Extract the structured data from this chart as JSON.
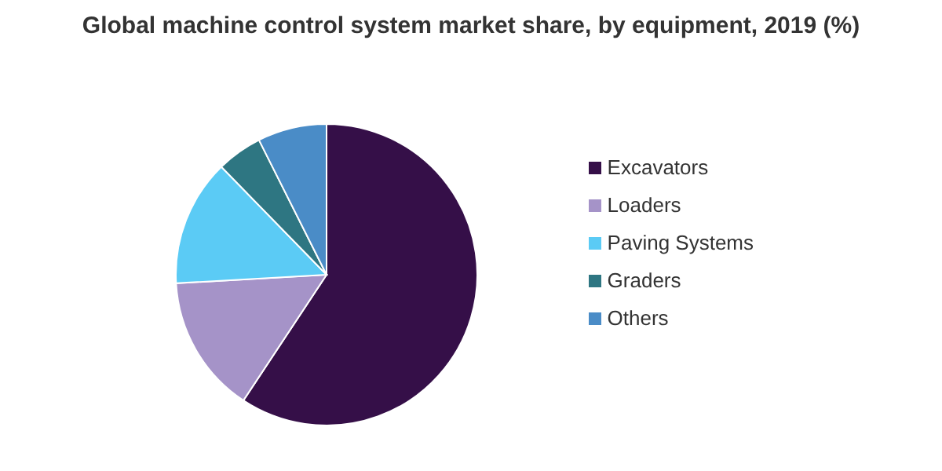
{
  "chart_data": {
    "type": "pie",
    "title": "Global machine control system market share, by equipment, 2019 (%)",
    "categories": [
      "Excavators",
      "Loaders",
      "Paving Systems",
      "Graders",
      "Others"
    ],
    "values": [
      59.3,
      14.8,
      13.6,
      4.9,
      7.4
    ],
    "colors": [
      "#350f48",
      "#a593c8",
      "#5bcbf5",
      "#2e7682",
      "#4a8cc7"
    ],
    "legend": "right"
  }
}
